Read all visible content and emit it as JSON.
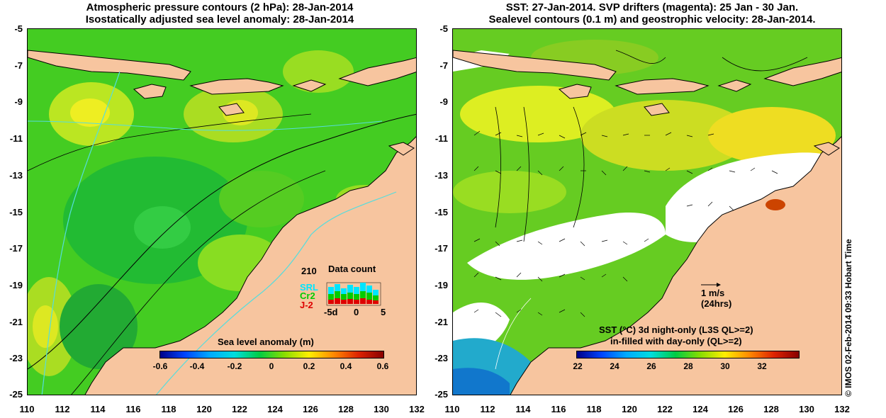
{
  "left_map": {
    "title_line1": "Atmospheric pressure contours (2 hPa): 28-Jan-2014",
    "title_line2": "Isostatically adjusted sea level anomaly: 28-Jan-2014",
    "colorbar_label": "Sea level anomaly (m)",
    "colorbar_ticks": [
      "-0.6",
      "-0.4",
      "-0.2",
      "0",
      "0.2",
      "0.4",
      "0.6"
    ],
    "data_count": {
      "title": "Data count",
      "max_label": "210",
      "series": [
        {
          "name": "SRL",
          "color": "#00e5ff"
        },
        {
          "name": "Cr2",
          "color": "#00cc00"
        },
        {
          "name": "J-2",
          "color": "#dd0000"
        }
      ],
      "x_ticks": [
        "-5d",
        "0",
        "5"
      ]
    }
  },
  "right_map": {
    "title_line1": "SST: 27-Jan-2014. SVP drifters (magenta): 25 Jan - 30 Jan.",
    "title_line2": "Sealevel contours (0.1 m) and geostrophic velocity: 28-Jan-2014.",
    "velocity_scale_label": "1 m/s",
    "velocity_scale_sub": "(24hrs)",
    "colorbar_label_line1": "SST (°C)  3d night-only (L3S QL>=2)",
    "colorbar_label_line2": "in-filled with day-only (QL>=2)",
    "colorbar_ticks": [
      "22",
      "24",
      "26",
      "28",
      "30",
      "32"
    ]
  },
  "axes": {
    "lat_ticks": [
      "-5",
      "-7",
      "-9",
      "-11",
      "-13",
      "-15",
      "-17",
      "-19",
      "-21",
      "-23",
      "-25"
    ],
    "lon_ticks": [
      "110",
      "112",
      "114",
      "116",
      "118",
      "120",
      "122",
      "124",
      "126",
      "128",
      "130",
      "132"
    ]
  },
  "copyright": "© IMOS 02-Feb-2014 09:33 Hobart Time",
  "colors": {
    "land": "#f7c59f",
    "sea_green": "#33cc33",
    "sea_light": "#88dd22",
    "sea_yellow": "#ddee22",
    "warm": "#ffdd00",
    "cloud": "#ffffff"
  }
}
